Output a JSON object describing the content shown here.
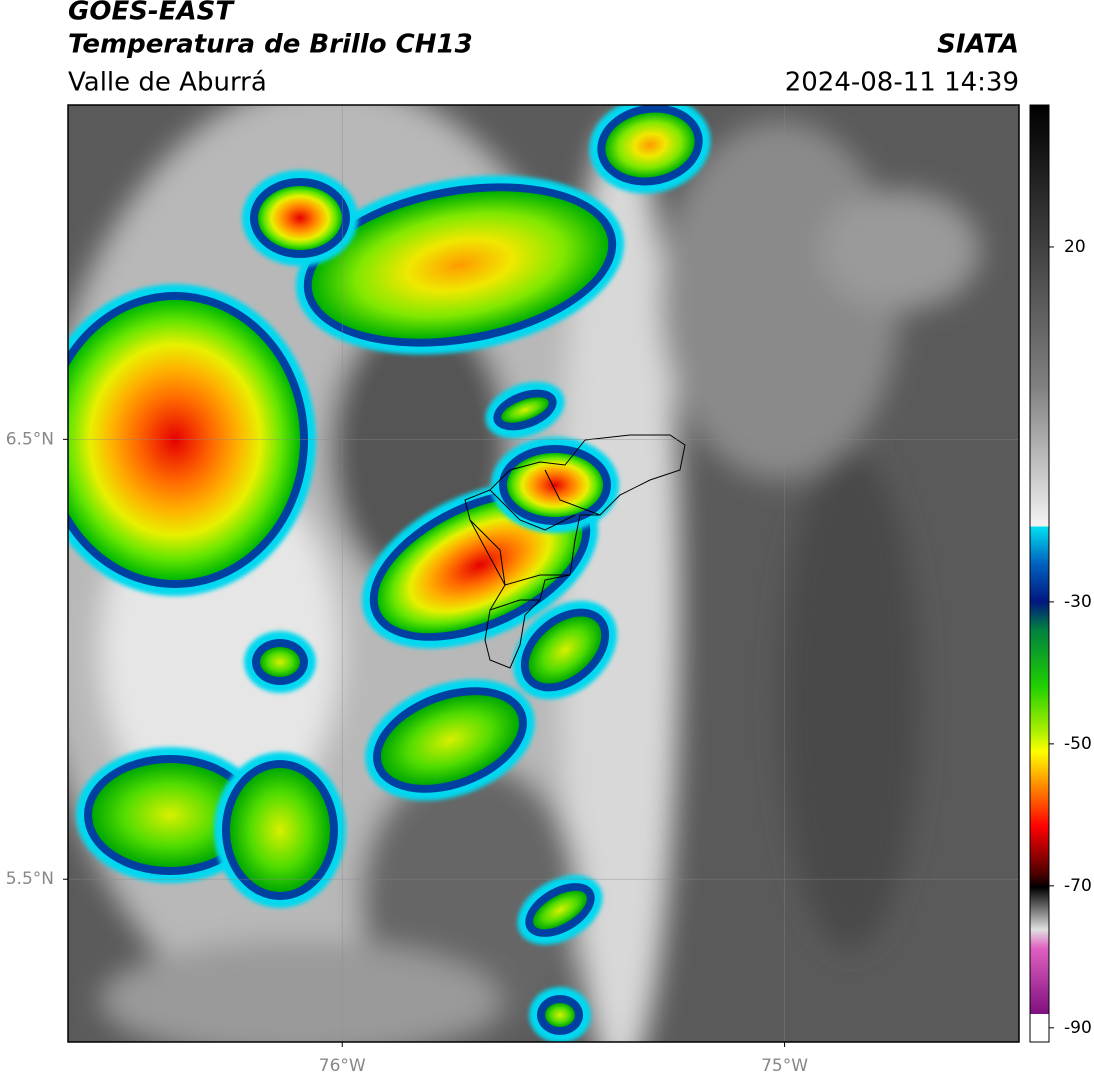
{
  "header": {
    "title": "GOES-EAST",
    "subtitle": "Temperatura de Brillo CH13",
    "region": "Valle de Aburrá",
    "source": "SIATA",
    "datetime": "2024-08-11 14:39"
  },
  "map": {
    "xlim": [
      -76.62,
      -74.47
    ],
    "ylim": [
      5.13,
      7.26
    ],
    "xticks": [
      {
        "value": -76,
        "label": "76°W"
      },
      {
        "value": -75,
        "label": "75°W"
      }
    ],
    "yticks": [
      {
        "value": 5.5,
        "label": "5.5°N"
      },
      {
        "value": 6.5,
        "label": "6.5°N"
      }
    ],
    "grid": true
  },
  "colorbar": {
    "lim": [
      -92,
      40
    ],
    "ticks": [
      20,
      -30,
      -50,
      -70,
      -90
    ]
  }
}
